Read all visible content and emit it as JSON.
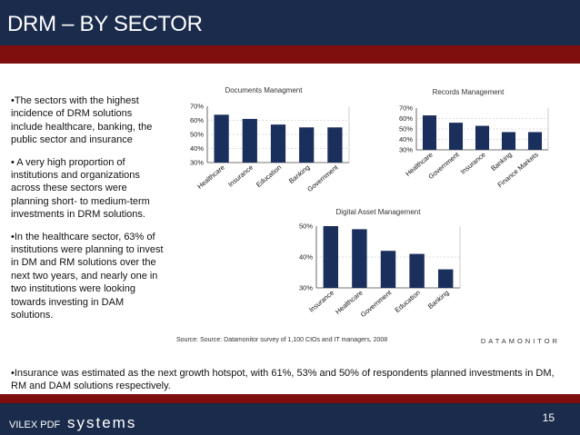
{
  "header": {
    "title": "DRM – BY SECTOR"
  },
  "bullets": [
    "•The sectors with the highest incidence of DRM solutions include healthcare, banking, the public sector and insurance",
    "• A very high proportion of institutions and organizations across these sectors were planning short- to medium-term investments in DRM solutions.",
    "•In the healthcare sector, 63% of institutions were planning to invest in DM and RM solutions over the next two years, and nearly one in two institutions were looking towards investing in DAM solutions."
  ],
  "bottom_bullet": "•Insurance was estimated as the next growth hotspot, with 61%, 53% and 50% of respondents planned investments in DM, RM and DAM solutions respectively.",
  "source_text": "Source: Source: Datamonitor survey of 1,100 CIOs and IT managers, 2008",
  "source_brand": "DATAMONITOR",
  "footer": {
    "brand_left": "VILEX PDF",
    "brand_right": "systems",
    "page_number": "15"
  },
  "colors": {
    "header_bg": "#1b2b4b",
    "red_bar": "#7f0e0e",
    "bar_fill": "#1b2f5c"
  },
  "chart_data": [
    {
      "type": "bar",
      "title": "Documents Managment",
      "categories": [
        "Healthcare",
        "Insurance",
        "Education",
        "Banking",
        "Government"
      ],
      "values": [
        64,
        61,
        57,
        55,
        55
      ],
      "ylim": [
        30,
        70
      ],
      "yticks": [
        "70%",
        "60%",
        "50%",
        "40%",
        "30%"
      ],
      "xlabel": "",
      "ylabel": ""
    },
    {
      "type": "bar",
      "title": "Records Management",
      "categories": [
        "Healthcare",
        "Government",
        "Insurance",
        "Banking",
        "Finance Markets"
      ],
      "values": [
        63,
        56,
        53,
        47,
        47
      ],
      "ylim": [
        30,
        70
      ],
      "yticks": [
        "70%",
        "60%",
        "50%",
        "40%",
        "30%"
      ],
      "xlabel": "",
      "ylabel": ""
    },
    {
      "type": "bar",
      "title": "Digital Asset Management",
      "categories": [
        "Insurance",
        "Healthcare",
        "Government",
        "Education",
        "Banking"
      ],
      "values": [
        50,
        49,
        42,
        41,
        36
      ],
      "ylim": [
        30,
        50
      ],
      "yticks": [
        "50%",
        "40%",
        "30%"
      ],
      "xlabel": "",
      "ylabel": ""
    }
  ]
}
